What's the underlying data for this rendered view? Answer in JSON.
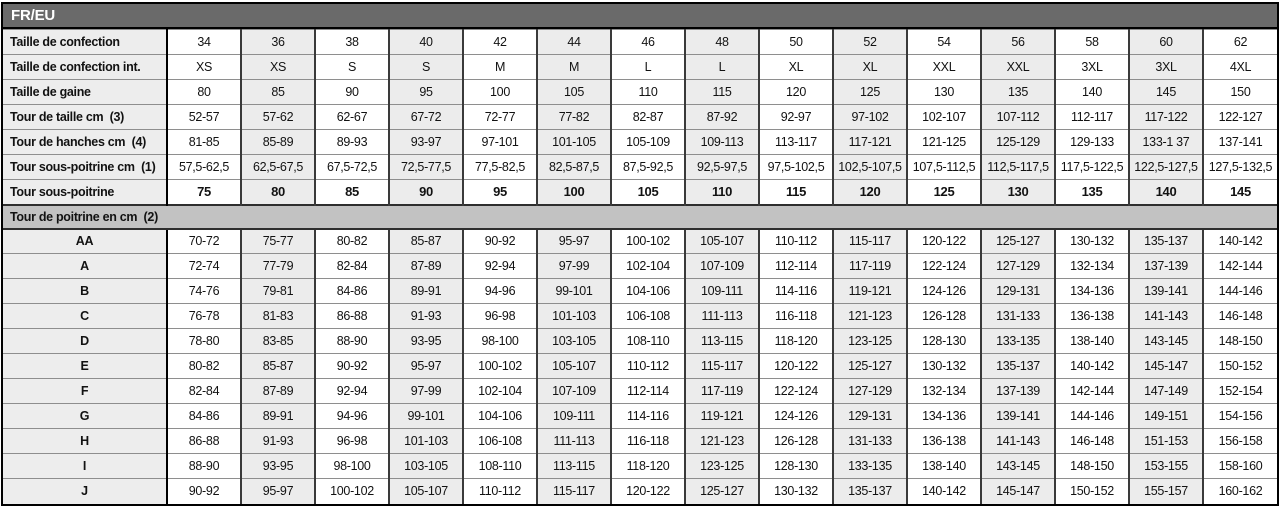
{
  "header": {
    "title": "FR/EU"
  },
  "colors": {
    "header_bar": "#6a6a6a",
    "section_band": "#c2c2c2",
    "label_column_bg": "#ededed",
    "shaded_column_bg": "#ececec",
    "grid_vertical": "#3a3a3a",
    "grid_horizontal": "#8e8e8e",
    "outer_border": "#000000"
  },
  "table": {
    "top_rows": [
      {
        "label": "Taille de confection",
        "bold": false,
        "values": [
          "34",
          "36",
          "38",
          "40",
          "42",
          "44",
          "46",
          "48",
          "50",
          "52",
          "54",
          "56",
          "58",
          "60",
          "62"
        ]
      },
      {
        "label": "Taille de confection int.",
        "bold": false,
        "values": [
          "XS",
          "XS",
          "S",
          "S",
          "M",
          "M",
          "L",
          "L",
          "XL",
          "XL",
          "XXL",
          "XXL",
          "3XL",
          "3XL",
          "4XL"
        ]
      },
      {
        "label": "Taille de gaine",
        "bold": false,
        "values": [
          "80",
          "85",
          "90",
          "95",
          "100",
          "105",
          "110",
          "115",
          "120",
          "125",
          "130",
          "135",
          "140",
          "145",
          "150"
        ]
      },
      {
        "label": "Tour de taille cm  (3)",
        "bold": false,
        "values": [
          "52-57",
          "57-62",
          "62-67",
          "67-72",
          "72-77",
          "77-82",
          "82-87",
          "87-92",
          "92-97",
          "97-102",
          "102-107",
          "107-112",
          "112-117",
          "117-122",
          "122-127"
        ]
      },
      {
        "label": "Tour de hanches cm  (4)",
        "bold": false,
        "values": [
          "81-85",
          "85-89",
          "89-93",
          "93-97",
          "97-101",
          "101-105",
          "105-109",
          "109-113",
          "113-117",
          "117-121",
          "121-125",
          "125-129",
          "129-133",
          "133-1 37",
          "137-141"
        ]
      },
      {
        "label": "Tour sous-poitrine cm  (1)",
        "bold": false,
        "values": [
          "57,5-62,5",
          "62,5-67,5",
          "67,5-72,5",
          "72,5-77,5",
          "77,5-82,5",
          "82,5-87,5",
          "87,5-92,5",
          "92,5-97,5",
          "97,5-102,5",
          "102,5-107,5",
          "107,5-112,5",
          "112,5-117,5",
          "117,5-122,5",
          "122,5-127,5",
          "127,5-132,5"
        ]
      },
      {
        "label": "Tour sous-poitrine",
        "bold": true,
        "values": [
          "75",
          "80",
          "85",
          "90",
          "95",
          "100",
          "105",
          "110",
          "115",
          "120",
          "125",
          "130",
          "135",
          "140",
          "145"
        ]
      }
    ],
    "section_header": "Tour de poitrine en cm  (2)",
    "cup_rows": [
      {
        "label": "AA",
        "values": [
          "70-72",
          "75-77",
          "80-82",
          "85-87",
          "90-92",
          "95-97",
          "100-102",
          "105-107",
          "110-112",
          "115-117",
          "120-122",
          "125-127",
          "130-132",
          "135-137",
          "140-142"
        ]
      },
      {
        "label": "A",
        "values": [
          "72-74",
          "77-79",
          "82-84",
          "87-89",
          "92-94",
          "97-99",
          "102-104",
          "107-109",
          "112-114",
          "117-119",
          "122-124",
          "127-129",
          "132-134",
          "137-139",
          "142-144"
        ]
      },
      {
        "label": "B",
        "values": [
          "74-76",
          "79-81",
          "84-86",
          "89-91",
          "94-96",
          "99-101",
          "104-106",
          "109-111",
          "114-116",
          "119-121",
          "124-126",
          "129-131",
          "134-136",
          "139-141",
          "144-146"
        ]
      },
      {
        "label": "C",
        "values": [
          "76-78",
          "81-83",
          "86-88",
          "91-93",
          "96-98",
          "101-103",
          "106-108",
          "111-113",
          "116-118",
          "121-123",
          "126-128",
          "131-133",
          "136-138",
          "141-143",
          "146-148"
        ]
      },
      {
        "label": "D",
        "values": [
          "78-80",
          "83-85",
          "88-90",
          "93-95",
          "98-100",
          "103-105",
          "108-110",
          "113-115",
          "118-120",
          "123-125",
          "128-130",
          "133-135",
          "138-140",
          "143-145",
          "148-150"
        ]
      },
      {
        "label": "E",
        "values": [
          "80-82",
          "85-87",
          "90-92",
          "95-97",
          "100-102",
          "105-107",
          "110-112",
          "115-117",
          "120-122",
          "125-127",
          "130-132",
          "135-137",
          "140-142",
          "145-147",
          "150-152"
        ]
      },
      {
        "label": "F",
        "values": [
          "82-84",
          "87-89",
          "92-94",
          "97-99",
          "102-104",
          "107-109",
          "112-114",
          "117-119",
          "122-124",
          "127-129",
          "132-134",
          "137-139",
          "142-144",
          "147-149",
          "152-154"
        ]
      },
      {
        "label": "G",
        "values": [
          "84-86",
          "89-91",
          "94-96",
          "99-101",
          "104-106",
          "109-111",
          "114-116",
          "119-121",
          "124-126",
          "129-131",
          "134-136",
          "139-141",
          "144-146",
          "149-151",
          "154-156"
        ]
      },
      {
        "label": "H",
        "values": [
          "86-88",
          "91-93",
          "96-98",
          "101-103",
          "106-108",
          "111-113",
          "116-118",
          "121-123",
          "126-128",
          "131-133",
          "136-138",
          "141-143",
          "146-148",
          "151-153",
          "156-158"
        ]
      },
      {
        "label": "I",
        "values": [
          "88-90",
          "93-95",
          "98-100",
          "103-105",
          "108-110",
          "113-115",
          "118-120",
          "123-125",
          "128-130",
          "133-135",
          "138-140",
          "143-145",
          "148-150",
          "153-155",
          "158-160"
        ]
      },
      {
        "label": "J",
        "values": [
          "90-92",
          "95-97",
          "100-102",
          "105-107",
          "110-112",
          "115-117",
          "120-122",
          "125-127",
          "130-132",
          "135-137",
          "140-142",
          "145-147",
          "150-152",
          "155-157",
          "160-162"
        ]
      }
    ]
  }
}
